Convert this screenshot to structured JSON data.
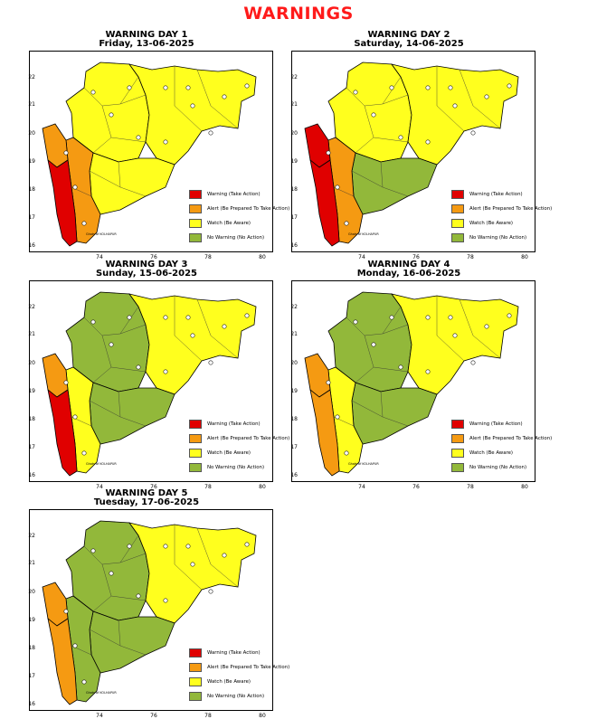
{
  "page_title": "WARNINGS",
  "colors": {
    "red": "#e00000",
    "orange": "#f59a12",
    "yellow": "#ffff1e",
    "green": "#92b83a"
  },
  "legend": [
    {
      "label": "Warning (Take Action)",
      "color": "#e00000"
    },
    {
      "label": "Alert (Be Prepared To Take Action)",
      "color": "#f59a12"
    },
    {
      "label": "Watch (Be Aware)",
      "color": "#ffff1e"
    },
    {
      "label": "No Warning (No Action)",
      "color": "#92b83a"
    }
  ],
  "axes": {
    "y_ticks": [
      "22",
      "21",
      "20",
      "19",
      "18",
      "17",
      "16"
    ],
    "x_ticks": [
      "74",
      "76",
      "78",
      "80"
    ]
  },
  "map_labels": {
    "kolhapur": "Ghats of KOLHAPUR"
  },
  "days": [
    {
      "title": "WARNING DAY 1",
      "date": "Friday, 13-06-2025",
      "zones": {
        "coast_south": "red",
        "coast_north": "orange",
        "ghat_west": "orange",
        "marathwada": "yellow",
        "north": "yellow",
        "vidarbha": "yellow"
      }
    },
    {
      "title": "WARNING DAY 2",
      "date": "Saturday, 14-06-2025",
      "zones": {
        "coast_south": "red",
        "coast_north": "red",
        "ghat_west": "orange",
        "marathwada": "green",
        "north": "yellow",
        "vidarbha": "yellow"
      }
    },
    {
      "title": "WARNING DAY 3",
      "date": "Sunday, 15-06-2025",
      "zones": {
        "coast_south": "red",
        "coast_north": "orange",
        "ghat_west": "yellow",
        "marathwada": "green",
        "north": "green",
        "vidarbha": "yellow"
      }
    },
    {
      "title": "WARNING DAY 4",
      "date": "Monday, 16-06-2025",
      "zones": {
        "coast_south": "orange",
        "coast_north": "orange",
        "ghat_west": "yellow",
        "marathwada": "green",
        "north": "green",
        "vidarbha": "yellow"
      }
    },
    {
      "title": "WARNING DAY 5",
      "date": "Tuesday, 17-06-2025",
      "zones": {
        "coast_south": "orange",
        "coast_north": "orange",
        "ghat_west": "green",
        "marathwada": "green",
        "north": "green",
        "vidarbha": "yellow"
      }
    }
  ]
}
